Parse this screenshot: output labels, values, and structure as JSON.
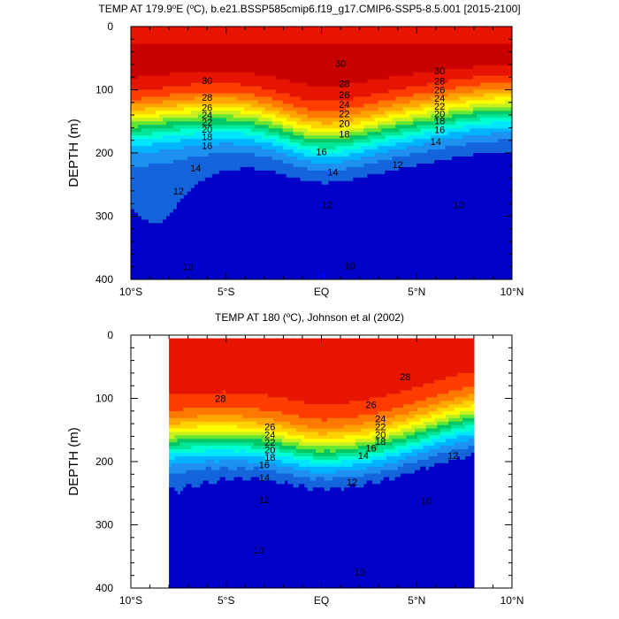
{
  "chart_data": [
    {
      "type": "contour",
      "title_prefix": "TEMP AT 179.9",
      "title_suffix": "E (",
      "title_unit": "C), b.e21.BSSP585cmip6.f19_g17.CMIP6-SSP5-8.5.001 [2015-2100]",
      "ylabel": "DEPTH (m)",
      "x_ticks": [
        "10°S",
        "5°S",
        "EQ",
        "5°N",
        "10°N"
      ],
      "y_ticks": [
        "0",
        "100",
        "200",
        "300",
        "400"
      ],
      "xlim": [
        -10,
        10
      ],
      "ylim": [
        0,
        400
      ],
      "colormap": [
        "#0000C8",
        "#1464DC",
        "#1E90F0",
        "#00B4FF",
        "#00E6FF",
        "#00FFD2",
        "#00E696",
        "#00C864",
        "#64E632",
        "#C8F01E",
        "#FFFF00",
        "#FFD200",
        "#FFA500",
        "#FF7800",
        "#FF3C00",
        "#E61400",
        "#C80000"
      ],
      "contour_labels": [
        {
          "text": "30",
          "x": -6.0,
          "y": 85
        },
        {
          "text": "28",
          "x": -6.0,
          "y": 112
        },
        {
          "text": "26",
          "x": -6.0,
          "y": 128
        },
        {
          "text": "24",
          "x": -6.0,
          "y": 140
        },
        {
          "text": "22",
          "x": -6.0,
          "y": 151
        },
        {
          "text": "20",
          "x": -6.0,
          "y": 162
        },
        {
          "text": "18",
          "x": -6.0,
          "y": 174
        },
        {
          "text": "16",
          "x": -6.0,
          "y": 188
        },
        {
          "text": "14",
          "x": -6.6,
          "y": 224
        },
        {
          "text": "12",
          "x": -7.5,
          "y": 260
        },
        {
          "text": "30",
          "x": 1.0,
          "y": 58
        },
        {
          "text": "28",
          "x": 1.2,
          "y": 90
        },
        {
          "text": "26",
          "x": 1.2,
          "y": 108
        },
        {
          "text": "24",
          "x": 1.2,
          "y": 123
        },
        {
          "text": "22",
          "x": 1.2,
          "y": 138
        },
        {
          "text": "20",
          "x": 1.2,
          "y": 153
        },
        {
          "text": "18",
          "x": 1.2,
          "y": 170
        },
        {
          "text": "16",
          "x": 0.0,
          "y": 198
        },
        {
          "text": "14",
          "x": 0.6,
          "y": 230
        },
        {
          "text": "12",
          "x": 0.3,
          "y": 282
        },
        {
          "text": "30",
          "x": 6.2,
          "y": 70
        },
        {
          "text": "28",
          "x": 6.2,
          "y": 86
        },
        {
          "text": "26",
          "x": 6.2,
          "y": 100
        },
        {
          "text": "24",
          "x": 6.2,
          "y": 113
        },
        {
          "text": "22",
          "x": 6.2,
          "y": 126
        },
        {
          "text": "20",
          "x": 6.2,
          "y": 138
        },
        {
          "text": "18",
          "x": 6.2,
          "y": 149
        },
        {
          "text": "16",
          "x": 6.2,
          "y": 163
        },
        {
          "text": "14",
          "x": 6.0,
          "y": 182
        },
        {
          "text": "12",
          "x": 4.0,
          "y": 218
        },
        {
          "text": "10",
          "x": 7.2,
          "y": 282
        },
        {
          "text": "10",
          "x": -7.0,
          "y": 380
        },
        {
          "text": "10",
          "x": 1.5,
          "y": 378
        }
      ]
    },
    {
      "type": "contour",
      "title_prefix": "TEMP AT 180 (",
      "title_unit": "C), Johnson et al (2002)",
      "ylabel": "DEPTH (m)",
      "x_ticks": [
        "10°S",
        "5°S",
        "EQ",
        "5°N",
        "10°N"
      ],
      "y_ticks": [
        "0",
        "100",
        "200",
        "300",
        "400"
      ],
      "xlim": [
        -10,
        10
      ],
      "ylim": [
        0,
        400
      ],
      "data_xlim": [
        -8,
        8
      ],
      "data_ylim": [
        5,
        400
      ],
      "colormap": [
        "#0000C8",
        "#1464DC",
        "#1E90F0",
        "#00B4FF",
        "#00E6FF",
        "#00FFD2",
        "#00E696",
        "#00C864",
        "#64E632",
        "#C8F01E",
        "#FFFF00",
        "#FFD200",
        "#FFA500",
        "#FF7800",
        "#FF3C00",
        "#E61400",
        "#C80000"
      ],
      "contour_labels": [
        {
          "text": "28",
          "x": -5.3,
          "y": 100
        },
        {
          "text": "26",
          "x": -2.7,
          "y": 145
        },
        {
          "text": "24",
          "x": -2.7,
          "y": 157
        },
        {
          "text": "22",
          "x": -2.7,
          "y": 169
        },
        {
          "text": "20",
          "x": -2.7,
          "y": 181
        },
        {
          "text": "18",
          "x": -2.7,
          "y": 193
        },
        {
          "text": "16",
          "x": -3.0,
          "y": 205
        },
        {
          "text": "14",
          "x": -3.0,
          "y": 225
        },
        {
          "text": "12",
          "x": -3.0,
          "y": 260
        },
        {
          "text": "28",
          "x": 4.4,
          "y": 66
        },
        {
          "text": "26",
          "x": 2.6,
          "y": 110
        },
        {
          "text": "24",
          "x": 3.1,
          "y": 132
        },
        {
          "text": "22",
          "x": 3.1,
          "y": 145
        },
        {
          "text": "20",
          "x": 3.1,
          "y": 157
        },
        {
          "text": "18",
          "x": 3.1,
          "y": 168
        },
        {
          "text": "16",
          "x": 2.6,
          "y": 178
        },
        {
          "text": "14",
          "x": 2.2,
          "y": 190
        },
        {
          "text": "12",
          "x": 1.6,
          "y": 232
        },
        {
          "text": "12",
          "x": 6.9,
          "y": 190
        },
        {
          "text": "10",
          "x": 5.5,
          "y": 262
        },
        {
          "text": "10",
          "x": -3.3,
          "y": 340
        },
        {
          "text": "10",
          "x": 2.0,
          "y": 375
        }
      ]
    }
  ]
}
